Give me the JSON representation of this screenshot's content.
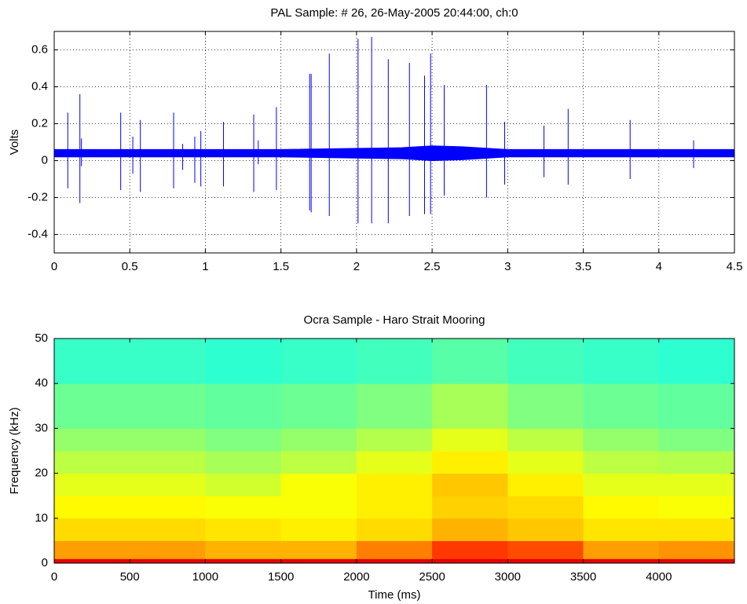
{
  "chart_data": [
    {
      "type": "waveform",
      "title": "PAL Sample: # 26, 26-May-2005 20:44:00, ch:0",
      "ylabel": "Volts",
      "color": "#0000ff",
      "grid": true,
      "xlim": [
        0,
        4.5
      ],
      "xticks": [
        0,
        0.5,
        1,
        1.5,
        2,
        2.5,
        3,
        3.5,
        4,
        4.5
      ],
      "ylim": [
        -0.5,
        0.7
      ],
      "yticks": [
        -0.4,
        -0.2,
        0,
        0.2,
        0.4,
        0.6
      ],
      "band": {
        "x": [
          0,
          1.5,
          2.3,
          2.5,
          2.7,
          3.0,
          4.5
        ],
        "high": [
          0.06,
          0.06,
          0.07,
          0.08,
          0.075,
          0.06,
          0.06
        ],
        "low": [
          0.02,
          0.02,
          0.01,
          0.0,
          0.005,
          0.02,
          0.02
        ]
      },
      "spikes": {
        "x": [
          0.09,
          0.17,
          0.18,
          0.44,
          0.52,
          0.57,
          0.79,
          0.85,
          0.93,
          0.97,
          1.12,
          1.32,
          1.35,
          1.47,
          1.69,
          1.7,
          1.82,
          2.01,
          2.1,
          2.21,
          2.35,
          2.45,
          2.49,
          2.58,
          2.86,
          2.98,
          3.24,
          3.4,
          3.81,
          4.23
        ],
        "high": [
          0.26,
          0.36,
          0.12,
          0.26,
          0.13,
          0.22,
          0.26,
          0.09,
          0.13,
          0.16,
          0.21,
          0.25,
          0.11,
          0.29,
          0.47,
          0.47,
          0.58,
          0.66,
          0.67,
          0.55,
          0.53,
          0.46,
          0.58,
          0.41,
          0.41,
          0.21,
          0.19,
          0.28,
          0.22,
          0.11
        ],
        "low": [
          -0.15,
          -0.23,
          -0.03,
          -0.16,
          -0.07,
          -0.17,
          -0.15,
          -0.05,
          -0.12,
          -0.14,
          -0.14,
          -0.17,
          -0.02,
          -0.16,
          -0.27,
          -0.28,
          -0.3,
          -0.34,
          -0.34,
          -0.34,
          -0.3,
          -0.29,
          -0.29,
          -0.19,
          -0.2,
          -0.13,
          -0.09,
          -0.13,
          -0.1,
          -0.04
        ]
      }
    },
    {
      "type": "spectrogram",
      "title": "Ocra Sample - Haro Strait Mooring",
      "xlabel": "Time (ms)",
      "ylabel": "Frequency (kHz)",
      "colormap": "jet",
      "clim": [
        0,
        1
      ],
      "xlim": [
        0,
        4500
      ],
      "xticks": [
        0,
        500,
        1000,
        1500,
        2000,
        2500,
        3000,
        3500,
        4000
      ],
      "ylim": [
        0,
        50
      ],
      "yticks": [
        0,
        10,
        20,
        30,
        40,
        50
      ],
      "x_bins": [
        0,
        500,
        1000,
        1500,
        2000,
        2500,
        3000,
        3500,
        4000,
        4500
      ],
      "y_bins": [
        0,
        1,
        5,
        10,
        15,
        20,
        25,
        30,
        40,
        50
      ],
      "levels": [
        [
          0.9,
          0.9,
          0.9,
          0.9,
          0.9,
          0.9,
          0.9,
          0.9,
          0.9
        ],
        [
          0.72,
          0.72,
          0.7,
          0.7,
          0.75,
          0.82,
          0.8,
          0.72,
          0.73
        ],
        [
          0.66,
          0.66,
          0.65,
          0.64,
          0.66,
          0.7,
          0.68,
          0.65,
          0.65
        ],
        [
          0.63,
          0.63,
          0.62,
          0.62,
          0.64,
          0.67,
          0.66,
          0.63,
          0.62
        ],
        [
          0.6,
          0.6,
          0.58,
          0.62,
          0.64,
          0.68,
          0.64,
          0.6,
          0.6
        ],
        [
          0.56,
          0.56,
          0.54,
          0.56,
          0.6,
          0.64,
          0.6,
          0.56,
          0.55
        ],
        [
          0.52,
          0.52,
          0.5,
          0.52,
          0.55,
          0.6,
          0.56,
          0.52,
          0.5
        ],
        [
          0.48,
          0.48,
          0.47,
          0.48,
          0.5,
          0.54,
          0.5,
          0.48,
          0.47
        ],
        [
          0.43,
          0.43,
          0.42,
          0.43,
          0.44,
          0.46,
          0.44,
          0.43,
          0.42
        ]
      ]
    }
  ]
}
